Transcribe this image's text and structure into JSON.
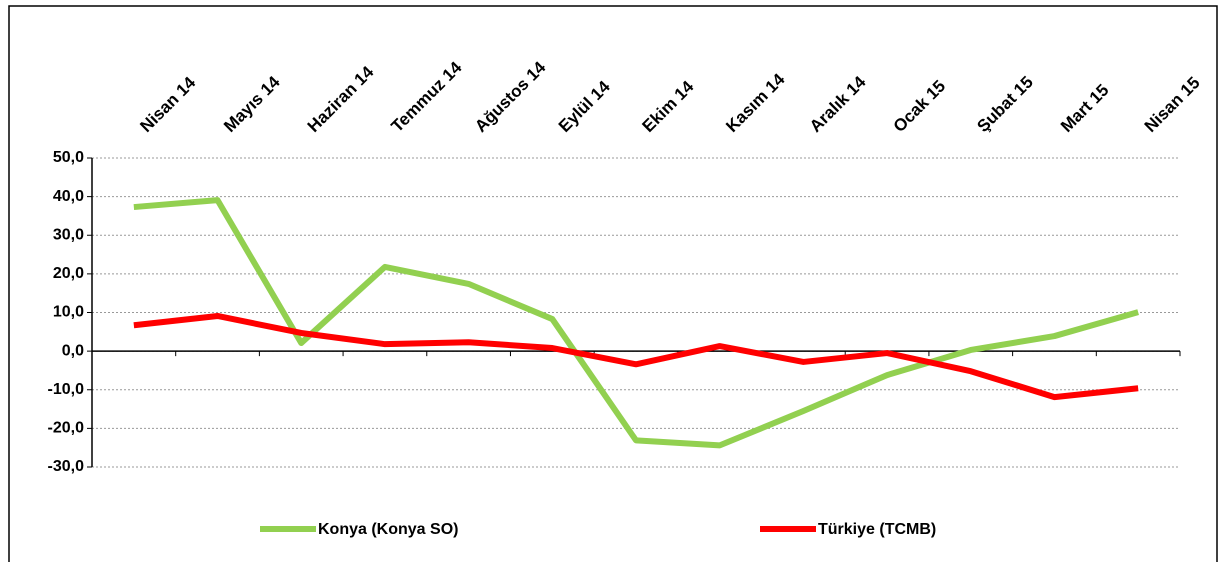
{
  "chart_data": {
    "type": "line",
    "categories": [
      "Nisan 14",
      "Mayıs 14",
      "Haziran 14",
      "Temmuz 14",
      "Ağustos 14",
      "Eylül 14",
      "Ekim 14",
      "Kasım 14",
      "Aralık 14",
      "Ocak 15",
      "Şubat 15",
      "Mart 15",
      "Nisan 15"
    ],
    "series": [
      {
        "name": "Konya (Konya SO)",
        "color": "#92d050",
        "values": [
          37.3,
          39.1,
          2.1,
          21.8,
          17.4,
          8.3,
          -23.1,
          -24.4,
          -15.5,
          -6.2,
          0.3,
          3.9,
          10.1
        ]
      },
      {
        "name": "Türkiye (TCMB)",
        "color": "#ff0000",
        "values": [
          6.7,
          9.1,
          4.7,
          1.8,
          2.3,
          0.8,
          -3.4,
          1.3,
          -2.8,
          -0.5,
          -5.2,
          -11.9,
          -9.6
        ]
      }
    ],
    "ylim": [
      -30,
      50
    ],
    "yticks": [
      {
        "value": -30,
        "label": "-30,0"
      },
      {
        "value": -20,
        "label": "-20,0"
      },
      {
        "value": -10,
        "label": "-10,0"
      },
      {
        "value": 0,
        "label": "0,0"
      },
      {
        "value": 10,
        "label": "10,0"
      },
      {
        "value": 20,
        "label": "20,0"
      },
      {
        "value": 30,
        "label": "30,0"
      },
      {
        "value": 40,
        "label": "40,0"
      },
      {
        "value": 50,
        "label": "50,0"
      }
    ],
    "grid": true,
    "legend": "bottom"
  }
}
